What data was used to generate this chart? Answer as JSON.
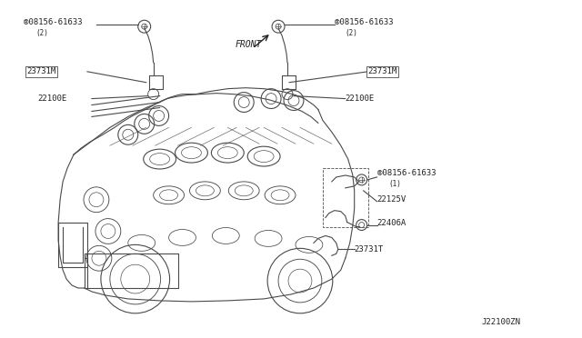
{
  "bg_color": "#ffffff",
  "line_color": "#4a4a4a",
  "label_color": "#222222",
  "fig_width": 6.4,
  "fig_height": 3.72,
  "diagram_number": "J22100ZN",
  "front_label": "FRONT",
  "label_left_bolt": "®08156-61633",
  "label_left_bolt_sub": "(2)",
  "label_left_23731M": "23731M",
  "label_left_22100E": "22100E",
  "label_right_bolt": "®08156-61633",
  "label_right_bolt_sub": "(2)",
  "label_right_23731M": "23731M",
  "label_right_22100E": "22100E",
  "label_mid_bolt": "®08156-61633",
  "label_mid_bolt_sub": "(1)",
  "label_22125V": "22125V",
  "label_22406A": "22406A",
  "label_23731T": "23731T"
}
